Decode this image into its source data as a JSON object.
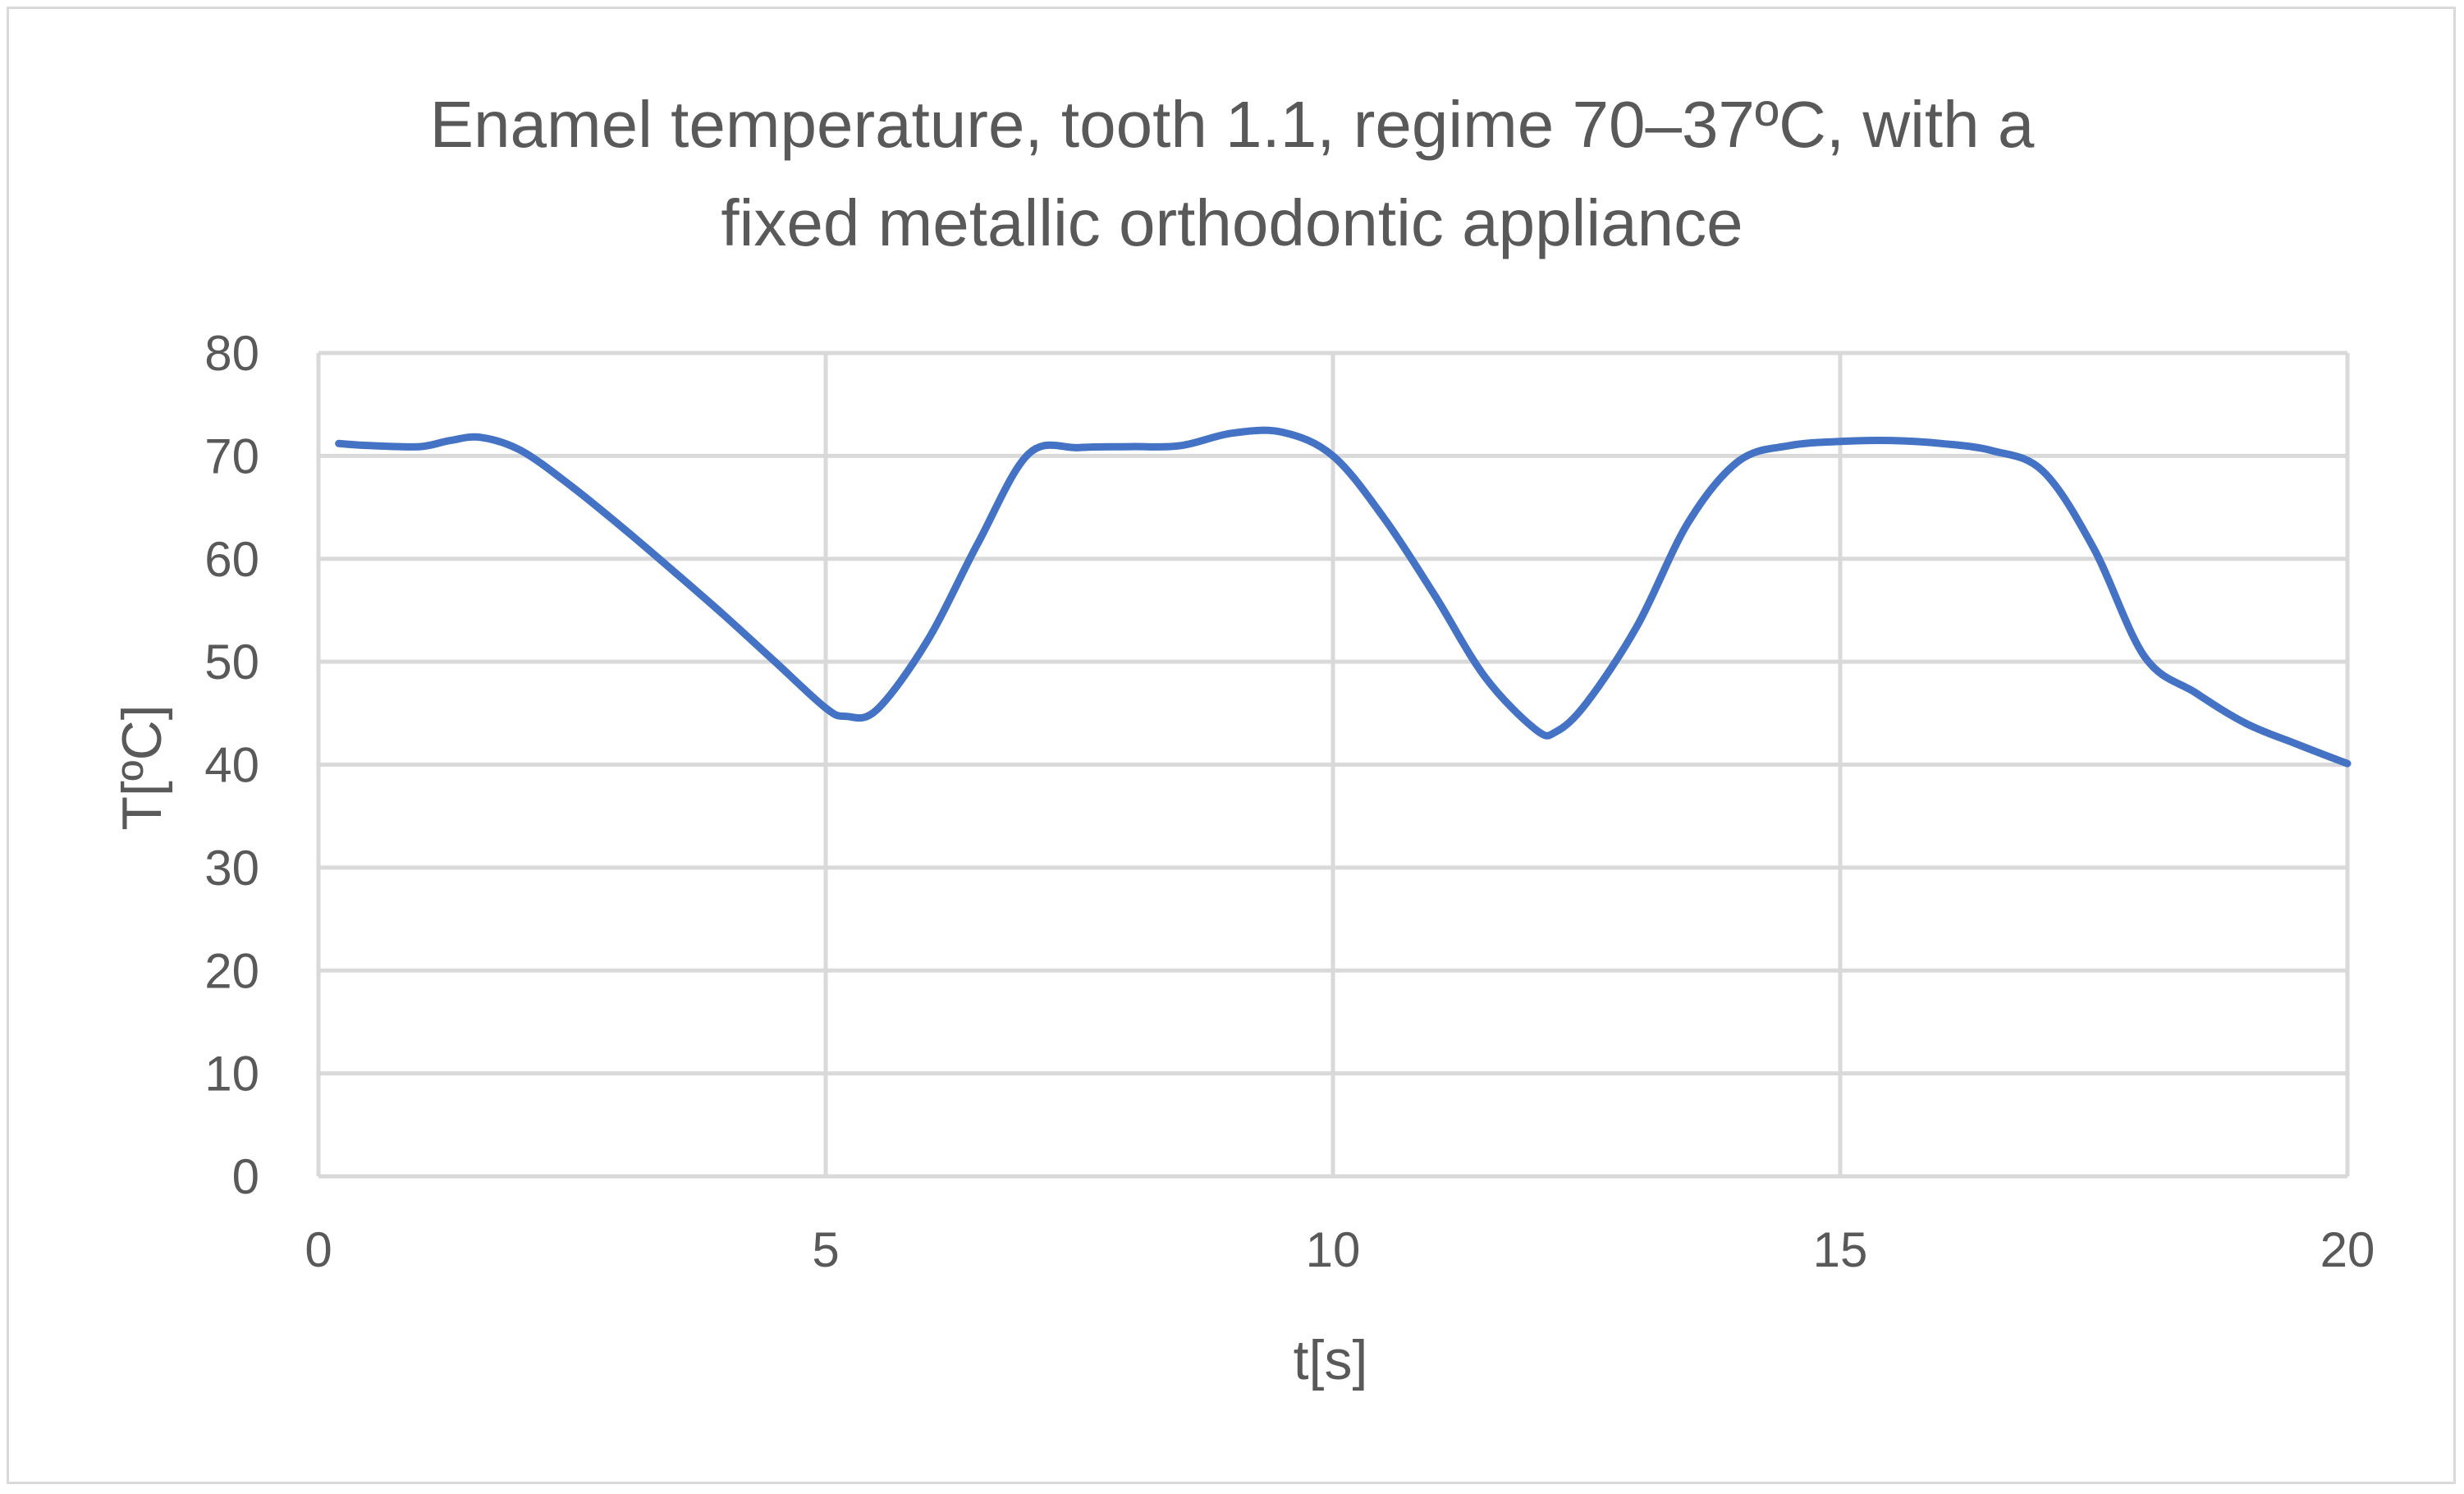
{
  "chart_data": {
    "type": "line",
    "title_lines": [
      "Enamel temperature, tooth 1.1, regime 70–37ºC, with a",
      "fixed metallic orthodontic appliance"
    ],
    "xlabel": "t[s]",
    "ylabel": "T[ºC]",
    "xlim": [
      0,
      20
    ],
    "ylim": [
      0,
      80
    ],
    "x_ticks": [
      "0",
      "5",
      "10",
      "15",
      "20"
    ],
    "y_ticks": [
      "0",
      "10",
      "20",
      "30",
      "40",
      "50",
      "60",
      "70",
      "80"
    ],
    "grid": true,
    "legend": "none",
    "series_color": "#4472C4",
    "series": [
      {
        "x": [
          0.2,
          0.5,
          1.0,
          1.3,
          1.6,
          2.0,
          2.5,
          3.0,
          3.5,
          4.0,
          4.5,
          5.0,
          5.2,
          5.5,
          6.0,
          6.5,
          7.0,
          7.5,
          8.0,
          8.5,
          9.0,
          9.5,
          10.0,
          10.5,
          11.0,
          11.5,
          12.0,
          12.2,
          12.5,
          13.0,
          13.5,
          14.0,
          14.5,
          15.0,
          15.5,
          16.0,
          16.5,
          17.0,
          17.5,
          18.0,
          18.5,
          19.0,
          19.5,
          20.0
        ],
        "values": [
          71.2,
          71.0,
          70.9,
          71.5,
          71.8,
          70.5,
          67.0,
          63.0,
          58.8,
          54.5,
          50.0,
          45.5,
          44.7,
          45.3,
          52.0,
          61.5,
          70.2,
          70.8,
          70.9,
          71.0,
          72.2,
          72.3,
          70.0,
          64.0,
          56.5,
          48.5,
          43.4,
          43.2,
          46.0,
          53.5,
          63.5,
          69.5,
          71.0,
          71.4,
          71.5,
          71.2,
          70.5,
          68.5,
          61.0,
          50.5,
          47.0,
          44.0,
          42.0,
          40.1
        ]
      }
    ]
  }
}
